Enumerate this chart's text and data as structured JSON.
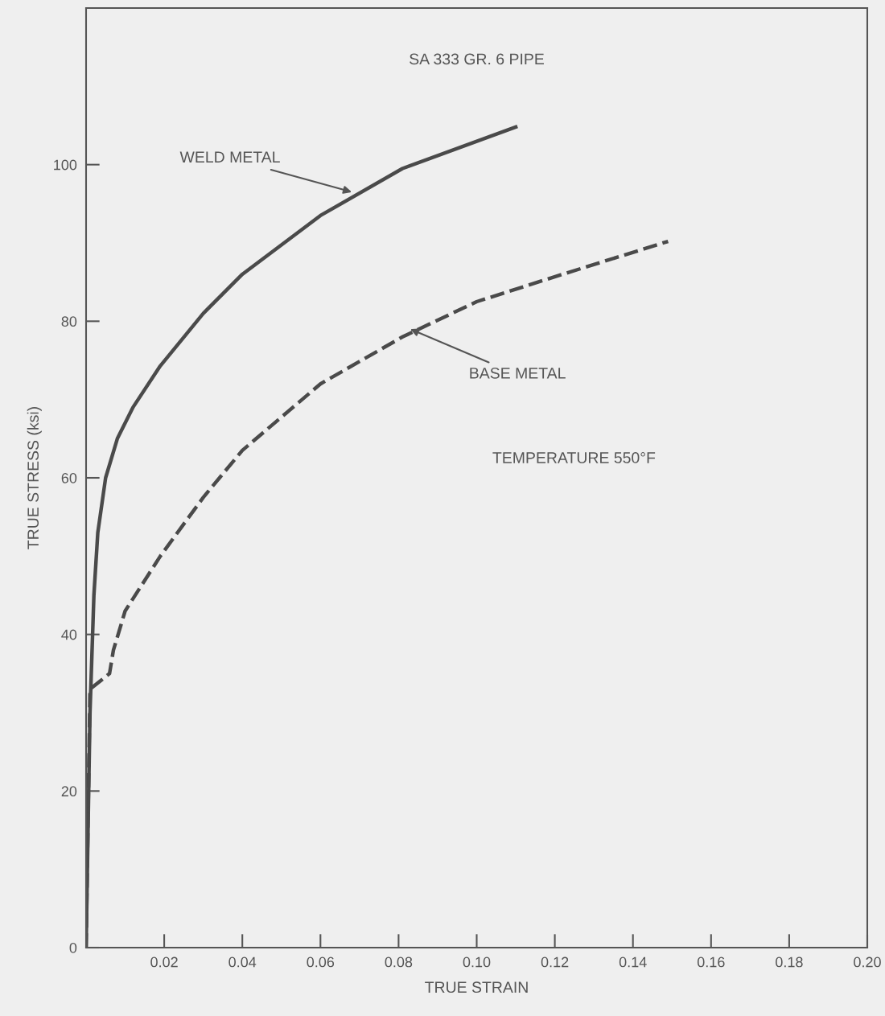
{
  "chart_data": {
    "type": "line",
    "title": "SA 333 GR. 6 PIPE",
    "xlabel": "TRUE STRAIN",
    "ylabel": "TRUE STRESS (ksi)",
    "xlim": [
      0,
      0.2
    ],
    "ylim": [
      0,
      120
    ],
    "xticks": [
      {
        "value": 0.02,
        "label": "0.02"
      },
      {
        "value": 0.04,
        "label": "0.04"
      },
      {
        "value": 0.06,
        "label": "0.06"
      },
      {
        "value": 0.08,
        "label": "0.08"
      },
      {
        "value": 0.1,
        "label": "0.10"
      },
      {
        "value": 0.12,
        "label": "0.12"
      },
      {
        "value": 0.14,
        "label": "0.14"
      },
      {
        "value": 0.16,
        "label": "0.16"
      },
      {
        "value": 0.18,
        "label": "0.18"
      },
      {
        "value": 0.2,
        "label": "0.20"
      }
    ],
    "yticks": [
      0,
      20,
      40,
      60,
      80,
      100
    ],
    "grid": false,
    "legend": false,
    "series": [
      {
        "color": "#4a4a4a",
        "line_style": "solid",
        "x": [
          0,
          0.001,
          0.002,
          0.003,
          0.005,
          0.008,
          0.012,
          0.019,
          0.03,
          0.04,
          0.06,
          0.081,
          0.11
        ],
        "values": [
          0,
          30,
          45,
          53,
          60,
          65,
          69,
          74.3,
          81,
          86,
          93.5,
          99.5,
          104.8
        ]
      },
      {
        "color": "#4a4a4a",
        "line_style": "dashed",
        "x": [
          0,
          0.001,
          0.006,
          0.007,
          0.01,
          0.019,
          0.03,
          0.04,
          0.06,
          0.081,
          0.1,
          0.122,
          0.149
        ],
        "values": [
          0,
          33,
          35,
          38,
          43,
          50,
          57.5,
          63.5,
          72,
          78,
          82.5,
          86,
          90.2
        ]
      }
    ],
    "annotations": [
      {
        "text": "WELD METAL",
        "x": 0.068,
        "y": 96.5
      },
      {
        "text": "BASE METAL",
        "x": 0.083,
        "y": 79
      },
      "TEMPERATURE 550°F"
    ]
  }
}
